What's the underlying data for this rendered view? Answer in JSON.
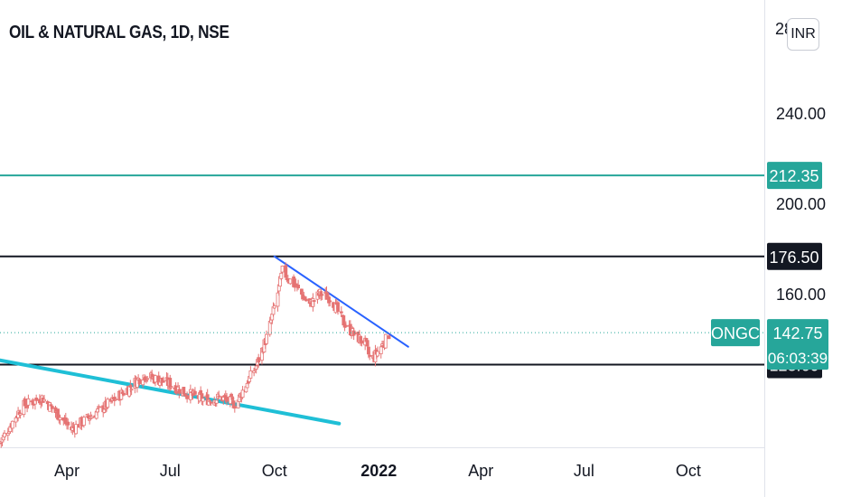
{
  "header": {
    "symbol_title": "OIL & NATURAL GAS, 1D, NSE",
    "currency_button": "INR",
    "top_price_partial": "28"
  },
  "colors": {
    "teal": "#26a69a",
    "trend_blue": "#2962ff",
    "cyan": "#1fbfd6",
    "black": "#131722",
    "candle": "#e57373"
  },
  "chart_data": {
    "type": "candlestick",
    "symbol": "ONGC",
    "interval": "1D",
    "exchange": "NSE",
    "currency": "INR",
    "y_ticks": [
      240,
      200,
      160
    ],
    "y_tick_labels": [
      "240.00",
      "200.00",
      "160.00"
    ],
    "ylim": [
      92,
      290
    ],
    "x_tick_labels": [
      "Apr",
      "Jul",
      "Oct",
      "2022",
      "Apr",
      "Jul",
      "Oct"
    ],
    "x_tick_dates": [
      "2021-04-01",
      "2021-07-01",
      "2021-10-01",
      "2022-01-01",
      "2022-04-01",
      "2022-07-01",
      "2022-10-01"
    ],
    "xlim": [
      "2021-02-01",
      "2022-12-07"
    ],
    "horizontal_lines": [
      {
        "price": 212.35,
        "label": "212.35",
        "color": "#26a69a"
      },
      {
        "price": 176.5,
        "label": "176.50",
        "color": "#131722"
      },
      {
        "price": 128.6,
        "label": "128.60",
        "color": "#131722"
      }
    ],
    "last_price": {
      "price": 142.75,
      "label": "142.75",
      "symbol_label": "ONGC",
      "countdown": "06:03:39",
      "color": "#26a69a"
    },
    "trend_lines": [
      {
        "name": "upper",
        "color": "#2962ff",
        "points": [
          [
            "2021-10-01",
            176.5
          ],
          [
            "2022-01-27",
            136.5
          ]
        ]
      },
      {
        "name": "lower",
        "color": "#1fbfd6",
        "points": [
          [
            "2021-02-01",
            130.5
          ],
          [
            "2021-11-27",
            102.5
          ]
        ]
      }
    ],
    "price_path": [
      [
        "2021-02-01",
        94
      ],
      [
        "2021-02-20",
        110
      ],
      [
        "2021-03-10",
        114
      ],
      [
        "2021-03-25",
        106
      ],
      [
        "2021-04-05",
        100
      ],
      [
        "2021-04-20",
        105
      ],
      [
        "2021-05-10",
        112
      ],
      [
        "2021-05-25",
        118
      ],
      [
        "2021-06-07",
        124
      ],
      [
        "2021-06-20",
        122
      ],
      [
        "2021-07-01",
        120
      ],
      [
        "2021-07-15",
        116
      ],
      [
        "2021-08-01",
        113
      ],
      [
        "2021-08-15",
        114
      ],
      [
        "2021-08-28",
        111
      ],
      [
        "2021-09-05",
        119
      ],
      [
        "2021-09-15",
        128
      ],
      [
        "2021-09-25",
        142
      ],
      [
        "2021-10-03",
        158
      ],
      [
        "2021-10-08",
        170
      ],
      [
        "2021-10-20",
        163
      ],
      [
        "2021-11-01",
        155
      ],
      [
        "2021-11-10",
        160
      ],
      [
        "2021-11-20",
        158
      ],
      [
        "2021-11-30",
        148
      ],
      [
        "2021-12-10",
        142
      ],
      [
        "2021-12-20",
        138
      ],
      [
        "2021-12-25",
        130
      ],
      [
        "2022-01-05",
        138
      ],
      [
        "2022-01-10",
        142
      ]
    ]
  }
}
